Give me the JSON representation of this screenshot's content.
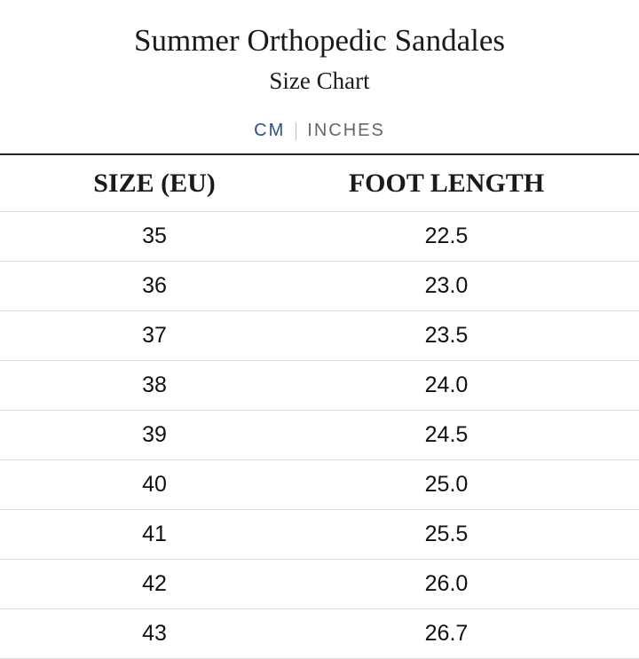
{
  "header": {
    "title": "Summer Orthopedic Sandales",
    "subtitle": "Size Chart"
  },
  "tabs": [
    "CM",
    "INCHES"
  ],
  "table": {
    "columns": [
      "SIZE (EU)",
      "FOOT LENGTH"
    ],
    "rows": [
      [
        "35",
        "22.5"
      ],
      [
        "36",
        "23.0"
      ],
      [
        "37",
        "23.5"
      ],
      [
        "38",
        "24.0"
      ],
      [
        "39",
        "24.5"
      ],
      [
        "40",
        "25.0"
      ],
      [
        "41",
        "25.5"
      ],
      [
        "42",
        "26.0"
      ],
      [
        "43",
        "26.7"
      ]
    ]
  }
}
